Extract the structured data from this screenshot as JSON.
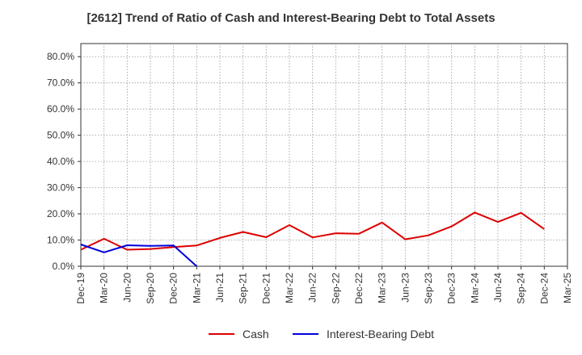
{
  "chart_data": {
    "type": "line",
    "title": "[2612]  Trend of Ratio of Cash and Interest-Bearing Debt to Total Assets",
    "xlabel": "",
    "ylabel": "",
    "x_tick_labels": [
      "Dec-19",
      "Mar-20",
      "Jun-20",
      "Sep-20",
      "Dec-20",
      "Mar-21",
      "Jun-21",
      "Sep-21",
      "Dec-21",
      "Mar-22",
      "Jun-22",
      "Sep-22",
      "Dec-22",
      "Mar-23",
      "Jun-23",
      "Sep-23",
      "Dec-23",
      "Mar-24",
      "Jun-24",
      "Sep-24",
      "Dec-24",
      "Mar-25"
    ],
    "y_ticks": [
      0,
      10,
      20,
      30,
      40,
      50,
      60,
      70,
      80
    ],
    "y_tick_labels": [
      "0.0%",
      "10.0%",
      "20.0%",
      "30.0%",
      "40.0%",
      "50.0%",
      "60.0%",
      "70.0%",
      "80.0%"
    ],
    "ylim": [
      0,
      85
    ],
    "grid": true,
    "legend_position": "bottom",
    "series": [
      {
        "name": "Cash",
        "color": "#dd0000",
        "values": [
          6.3,
          10.5,
          6.3,
          6.6,
          7.3,
          7.9,
          10.8,
          13.1,
          11.1,
          15.7,
          11.0,
          12.6,
          12.4,
          16.7,
          10.3,
          11.8,
          15.2,
          20.5,
          16.9,
          20.4,
          14.2
        ]
      },
      {
        "name": "Interest-Bearing Debt",
        "color": "#0000dd",
        "values": [
          8.3,
          5.3,
          8.0,
          7.8,
          7.9,
          0.0
        ]
      }
    ]
  }
}
